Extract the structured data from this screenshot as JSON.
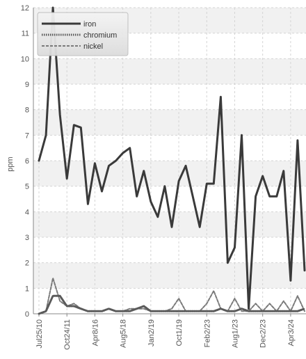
{
  "chart_data": {
    "type": "line",
    "title": "",
    "xlabel": "",
    "ylabel": "ppm",
    "ylim": [
      0,
      12
    ],
    "y_ticks": [
      0,
      1,
      2,
      3,
      4,
      5,
      6,
      7,
      8,
      9,
      10,
      11,
      12
    ],
    "grid": true,
    "legend_position": "top-left",
    "x_tick_labels": [
      "Jul25/10",
      "Oct24/11",
      "Apr8/16",
      "Aug5/18",
      "Jan2/19",
      "Oct1/19",
      "Feb2/23",
      "Aug1/23",
      "Dec2/23",
      "Apr3/24"
    ],
    "x_tick_positions": [
      0,
      4,
      8,
      12,
      16,
      20,
      24,
      28,
      32,
      36
    ],
    "series": [
      {
        "name": "iron",
        "color": "#3a3a3a",
        "style": "solid",
        "values": [
          6.0,
          7.0,
          12.0,
          7.8,
          5.3,
          7.4,
          7.3,
          4.3,
          5.9,
          4.8,
          5.8,
          6.0,
          6.3,
          6.5,
          4.6,
          5.6,
          4.4,
          3.8,
          5.0,
          3.4,
          5.2,
          5.8,
          4.6,
          3.4,
          5.1,
          5.1,
          8.5,
          2.0,
          2.6,
          7.0,
          0.2,
          4.6,
          5.4,
          4.6,
          4.6,
          5.6,
          1.3,
          6.8,
          1.7
        ]
      },
      {
        "name": "chromium",
        "color": "#5a5a5a",
        "style": "dotted",
        "values": [
          0.0,
          0.1,
          0.7,
          0.7,
          0.3,
          0.3,
          0.2,
          0.1,
          0.1,
          0.1,
          0.2,
          0.1,
          0.1,
          0.1,
          0.2,
          0.3,
          0.1,
          0.1,
          0.1,
          0.1,
          0.1,
          0.1,
          0.1,
          0.1,
          0.1,
          0.1,
          0.2,
          0.1,
          0.1,
          0.2,
          0.1,
          0.1,
          0.1,
          0.1,
          0.1,
          0.1,
          0.1,
          0.1,
          0.2
        ]
      },
      {
        "name": "nickel",
        "color": "#7a7a7a",
        "style": "dashed",
        "values": [
          0.0,
          0.1,
          1.4,
          0.5,
          0.3,
          0.4,
          0.2,
          0.1,
          0.1,
          0.1,
          0.2,
          0.1,
          0.1,
          0.2,
          0.2,
          0.2,
          0.1,
          0.1,
          0.1,
          0.2,
          0.6,
          0.1,
          0.1,
          0.1,
          0.4,
          0.9,
          0.2,
          0.1,
          0.6,
          0.1,
          0.1,
          0.4,
          0.1,
          0.4,
          0.1,
          0.5,
          0.1,
          0.7,
          0.1
        ]
      }
    ]
  }
}
